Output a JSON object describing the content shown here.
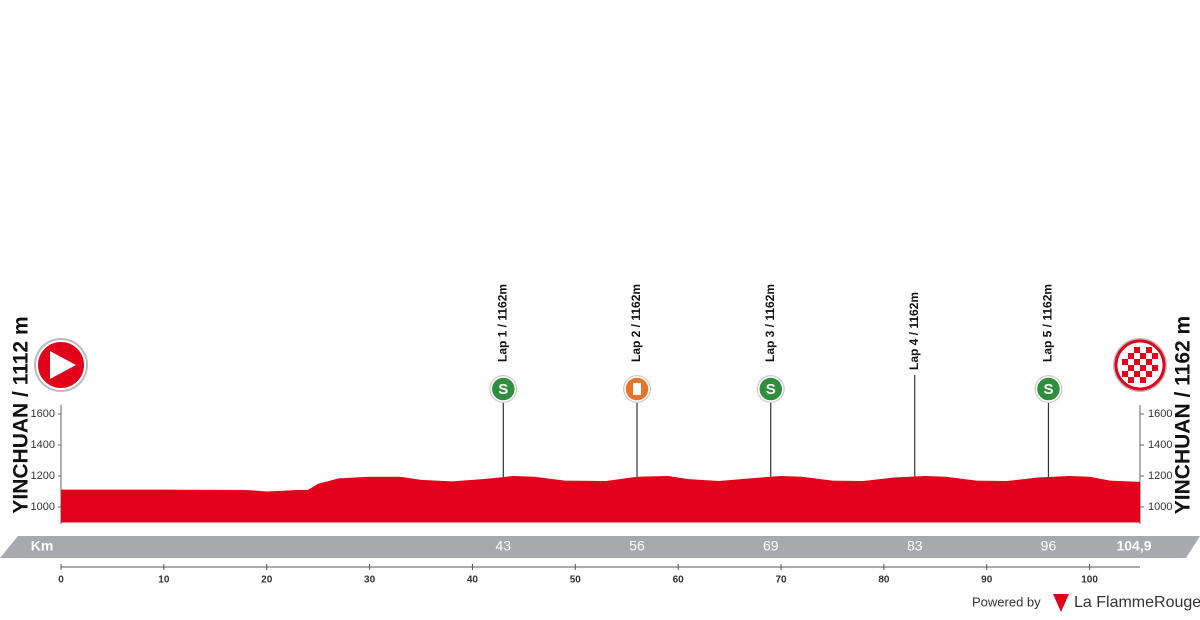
{
  "chart_data": {
    "type": "area",
    "start_label": "YINCHUAN / 1112 m",
    "finish_label": "YINCHUAN / 1162 m",
    "distance_unit": "Km",
    "finish_km": {
      "value": 104.9,
      "label": "104,9"
    },
    "color": "#e2001a",
    "profile": {
      "km": [
        0,
        10,
        18,
        20,
        23,
        24,
        25,
        27,
        30,
        33,
        35,
        38,
        41,
        44,
        46,
        49,
        53,
        56,
        59,
        61,
        64,
        67,
        70,
        72,
        75,
        78,
        81,
        84,
        86,
        89,
        92,
        95,
        98,
        100,
        102,
        104.9
      ],
      "elevation": [
        1112,
        1112,
        1110,
        1100,
        1110,
        1110,
        1150,
        1185,
        1195,
        1195,
        1175,
        1165,
        1180,
        1200,
        1195,
        1170,
        1168,
        1195,
        1200,
        1180,
        1168,
        1185,
        1200,
        1195,
        1170,
        1168,
        1190,
        1200,
        1195,
        1170,
        1168,
        1190,
        1200,
        1195,
        1170,
        1162
      ]
    },
    "xlim": [
      0,
      104.9
    ],
    "xticks": [
      0,
      10,
      20,
      30,
      40,
      50,
      60,
      70,
      80,
      90,
      100
    ],
    "ylim": [
      900,
      1700
    ],
    "yticks": [
      1000,
      1200,
      1400,
      1600
    ],
    "markers": [
      {
        "label": "Lap 1 / 1162m",
        "km": 43,
        "icon": "S",
        "icon_color": "#2f8f3f"
      },
      {
        "label": "Lap 2 / 1162m",
        "km": 56,
        "icon_color": "#e8742a"
      },
      {
        "label": "Lap 3 / 1162m",
        "km": 69,
        "icon": "S",
        "icon_color": "#2f8f3f"
      },
      {
        "label": "Lap 4 / 1162m",
        "km": 83
      },
      {
        "label": "Lap 5 / 1162m",
        "km": 96,
        "icon": "S",
        "icon_color": "#2f8f3f"
      }
    ]
  },
  "footer": {
    "powered": "Powered by",
    "brand": "La FlammeRouge"
  }
}
